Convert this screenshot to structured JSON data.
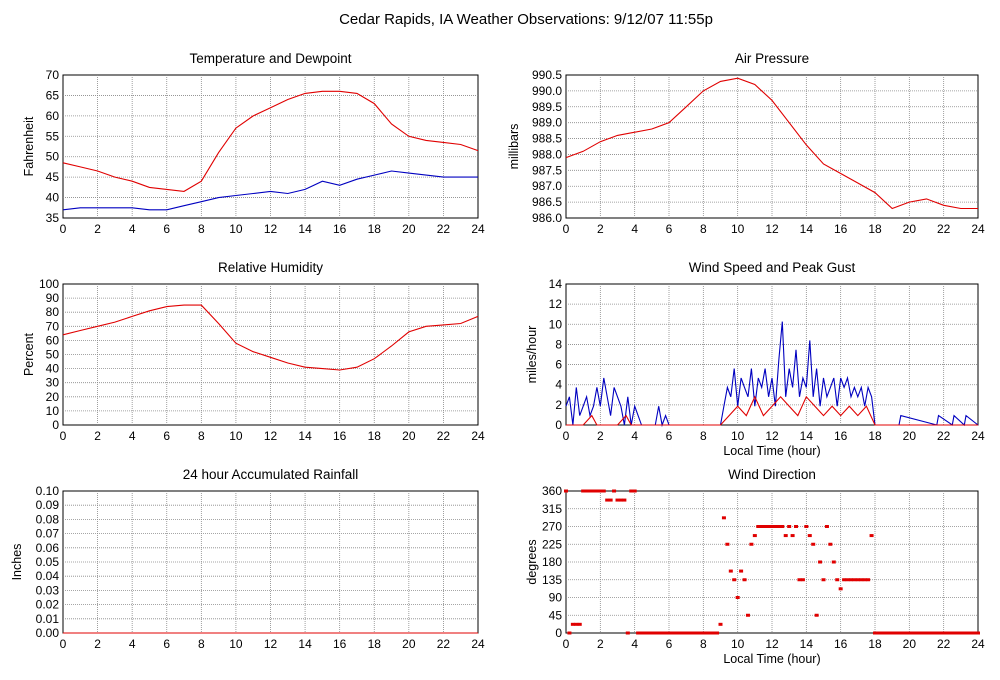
{
  "page": {
    "title": "Cedar Rapids, IA Weather Observations: 9/12/07 11:55p"
  },
  "chart_data": [
    {
      "id": "temp",
      "type": "line",
      "title": "Temperature and Dewpoint",
      "xlabel": "",
      "ylabel": "Fahrenheit",
      "xlim": [
        0,
        24
      ],
      "ylim": [
        35,
        70
      ],
      "grid": true,
      "x_ticks": [
        "0",
        "2",
        "4",
        "6",
        "8",
        "10",
        "12",
        "14",
        "16",
        "18",
        "20",
        "22",
        "24"
      ],
      "y_ticks": [
        "35",
        "40",
        "45",
        "50",
        "55",
        "60",
        "65",
        "70"
      ],
      "x": [
        0,
        1,
        2,
        3,
        4,
        5,
        6,
        7,
        8,
        9,
        10,
        11,
        12,
        13,
        14,
        15,
        16,
        17,
        18,
        19,
        20,
        21,
        22,
        23,
        24
      ],
      "series": [
        {
          "color": "#e00000",
          "values": [
            48.5,
            47.5,
            46.5,
            45,
            44,
            42.5,
            42,
            41.5,
            44,
            51,
            57,
            60,
            62,
            64,
            65.5,
            66,
            66,
            65.5,
            63,
            58,
            55,
            54,
            53.5,
            53,
            51.5
          ]
        },
        {
          "color": "#0000c0",
          "values": [
            37,
            37.5,
            37.5,
            37.5,
            37.5,
            37,
            37,
            38,
            39,
            40,
            40.5,
            41,
            41.5,
            41,
            42,
            44,
            43,
            44.5,
            45.5,
            46.5,
            46,
            45.5,
            45,
            45,
            45
          ]
        }
      ]
    },
    {
      "id": "pressure",
      "type": "line",
      "title": "Air Pressure",
      "xlabel": "",
      "ylabel": "millibars",
      "xlim": [
        0,
        24
      ],
      "ylim": [
        986.0,
        990.5
      ],
      "grid": true,
      "x_ticks": [
        "0",
        "2",
        "4",
        "6",
        "8",
        "10",
        "12",
        "14",
        "16",
        "18",
        "20",
        "22",
        "24"
      ],
      "y_ticks": [
        "986.0",
        "986.5",
        "987.0",
        "987.5",
        "988.0",
        "988.5",
        "989.0",
        "989.5",
        "990.0",
        "990.5"
      ],
      "x": [
        0,
        1,
        2,
        3,
        4,
        5,
        6,
        7,
        8,
        9,
        10,
        11,
        12,
        13,
        14,
        15,
        16,
        17,
        18,
        19,
        20,
        21,
        22,
        23,
        24
      ],
      "series": [
        {
          "color": "#e00000",
          "values": [
            987.9,
            988.1,
            988.4,
            988.6,
            988.7,
            988.8,
            989.0,
            989.5,
            990.0,
            990.3,
            990.4,
            990.2,
            989.7,
            989.0,
            988.3,
            987.7,
            987.4,
            987.1,
            986.8,
            986.3,
            986.5,
            986.6,
            986.4,
            986.3,
            986.3
          ]
        }
      ]
    },
    {
      "id": "humidity",
      "type": "line",
      "title": "Relative Humidity",
      "xlabel": "",
      "ylabel": "Percent",
      "xlim": [
        0,
        24
      ],
      "ylim": [
        0,
        100
      ],
      "grid": true,
      "x_ticks": [
        "0",
        "2",
        "4",
        "6",
        "8",
        "10",
        "12",
        "14",
        "16",
        "18",
        "20",
        "22",
        "24"
      ],
      "y_ticks": [
        "0",
        "10",
        "20",
        "30",
        "40",
        "50",
        "60",
        "70",
        "80",
        "90",
        "100"
      ],
      "x": [
        0,
        1,
        2,
        3,
        4,
        5,
        6,
        7,
        8,
        9,
        10,
        11,
        12,
        13,
        14,
        15,
        16,
        17,
        18,
        19,
        20,
        21,
        22,
        23,
        24
      ],
      "series": [
        {
          "color": "#e00000",
          "values": [
            64,
            67,
            70,
            73,
            77,
            81,
            84,
            85,
            85,
            72,
            58,
            52,
            48,
            44,
            41,
            40,
            39,
            41,
            47,
            56,
            66,
            70,
            71,
            72,
            77
          ]
        }
      ]
    },
    {
      "id": "wind",
      "type": "line",
      "title": "Wind Speed and Peak Gust",
      "xlabel": "Local Time (hour)",
      "ylabel": "miles/hour",
      "xlim": [
        0,
        24
      ],
      "ylim": [
        0,
        15
      ],
      "grid": true,
      "x_ticks": [
        "0",
        "2",
        "4",
        "6",
        "8",
        "10",
        "12",
        "14",
        "16",
        "18",
        "20",
        "22",
        "24"
      ],
      "y_ticks": [
        "0",
        "2",
        "4",
        "6",
        "8",
        "10",
        "12",
        "14"
      ],
      "series": [
        {
          "color": "#0000c0",
          "x": [
            0,
            0.2,
            0.4,
            0.6,
            0.8,
            1,
            1.2,
            1.4,
            1.6,
            1.8,
            2,
            2.2,
            2.4,
            2.6,
            2.8,
            3,
            3.2,
            3.4,
            3.6,
            3.8,
            4,
            4.2,
            4.4,
            4.6,
            4.8,
            5,
            5.2,
            5.4,
            5.6,
            5.8,
            6,
            6.2,
            6.4,
            6.6,
            6.8,
            7,
            7.2,
            7.4,
            7.6,
            7.8,
            8,
            8.2,
            8.4,
            8.6,
            8.8,
            9,
            9.2,
            9.4,
            9.6,
            9.8,
            10,
            10.2,
            10.4,
            10.6,
            10.8,
            11,
            11.2,
            11.4,
            11.6,
            11.8,
            12,
            12.2,
            12.4,
            12.6,
            12.8,
            13,
            13.2,
            13.4,
            13.6,
            13.8,
            14,
            14.2,
            14.4,
            14.6,
            14.8,
            15,
            15.2,
            15.4,
            15.6,
            15.8,
            16,
            16.2,
            16.4,
            16.6,
            16.8,
            17,
            17.2,
            17.4,
            17.6,
            17.8,
            18,
            18.2,
            19.4,
            19.5,
            21.6,
            21.7,
            22.5,
            22.6,
            23.2,
            23.3,
            24
          ],
          "values": [
            2,
            3,
            0,
            4,
            1,
            2,
            3,
            1,
            2,
            4,
            2,
            5,
            3,
            1,
            4,
            3,
            2,
            0,
            3,
            0,
            2,
            1,
            0,
            0,
            0,
            0,
            0,
            2,
            0,
            1,
            0,
            0,
            0,
            0,
            0,
            0,
            0,
            0,
            0,
            0,
            0,
            0,
            0,
            0,
            0,
            0,
            2,
            4,
            3,
            6,
            2,
            5,
            4,
            3,
            6,
            2,
            5,
            4,
            6,
            3,
            5,
            2,
            7,
            11,
            3,
            6,
            4,
            8,
            3,
            5,
            4,
            9,
            3,
            6,
            2,
            5,
            3,
            4,
            5,
            2,
            5,
            4,
            5,
            3,
            4,
            3,
            4,
            2,
            4,
            3,
            0,
            0,
            0,
            1,
            0,
            1,
            0,
            1,
            0,
            1,
            0
          ]
        },
        {
          "color": "#e00000",
          "x": [
            0,
            1,
            1.5,
            1.8,
            2,
            3,
            3.5,
            3.8,
            4,
            8,
            9,
            9.5,
            10,
            10.5,
            11,
            11.5,
            12,
            12.5,
            13,
            13.5,
            14,
            14.5,
            15,
            15.5,
            16,
            16.5,
            17,
            17.5,
            18,
            24
          ],
          "values": [
            0,
            0,
            1,
            0,
            0,
            0,
            1,
            0,
            0,
            0,
            0,
            1,
            2,
            1,
            3,
            1,
            2,
            3,
            2,
            1,
            3,
            2,
            1,
            2,
            1,
            2,
            1,
            2,
            0,
            0
          ]
        }
      ]
    },
    {
      "id": "rain",
      "type": "line",
      "title": "24 hour Accumulated Rainfall",
      "xlabel": "",
      "ylabel": "Inches",
      "xlim": [
        0,
        24
      ],
      "ylim": [
        0,
        0.1
      ],
      "grid": true,
      "x_ticks": [
        "0",
        "2",
        "4",
        "6",
        "8",
        "10",
        "12",
        "14",
        "16",
        "18",
        "20",
        "22",
        "24"
      ],
      "y_ticks": [
        "0.00",
        "0.01",
        "0.02",
        "0.03",
        "0.04",
        "0.05",
        "0.06",
        "0.07",
        "0.08",
        "0.09",
        "0.10"
      ],
      "x": [
        0,
        24
      ],
      "series": [
        {
          "color": "#e00000",
          "values": [
            0,
            0
          ]
        }
      ]
    },
    {
      "id": "direction",
      "type": "scatter",
      "title": "Wind Direction",
      "xlabel": "Local Time (hour)",
      "ylabel": "degrees",
      "xlim": [
        0,
        24
      ],
      "ylim": [
        0,
        360
      ],
      "grid": true,
      "x_ticks": [
        "0",
        "2",
        "4",
        "6",
        "8",
        "10",
        "12",
        "14",
        "16",
        "18",
        "20",
        "22",
        "24"
      ],
      "y_ticks": [
        "0",
        "45",
        "90",
        "135",
        "180",
        "225",
        "270",
        "315",
        "360"
      ],
      "series": [
        {
          "color": "#e00000",
          "x": [
            0,
            0.2,
            0.4,
            0.6,
            0.8,
            1,
            1.2,
            1.4,
            1.6,
            1.8,
            2,
            2.2,
            2.4,
            2.6,
            2.8,
            3,
            3.2,
            3.4,
            3.6,
            3.8,
            4,
            4.2,
            4.4,
            4.6,
            4.8,
            5,
            5.2,
            5.4,
            5.6,
            5.8,
            6,
            6.2,
            6.4,
            6.6,
            6.8,
            7,
            7.2,
            7.4,
            7.6,
            7.8,
            8,
            8.2,
            8.4,
            8.6,
            8.8,
            9,
            9.2,
            9.4,
            9.6,
            9.8,
            10,
            10.2,
            10.4,
            10.6,
            10.8,
            11,
            11.2,
            11.4,
            11.6,
            11.8,
            12,
            12.2,
            12.4,
            12.6,
            12.8,
            13,
            13.2,
            13.4,
            13.6,
            13.8,
            14,
            14.2,
            14.4,
            14.6,
            14.8,
            15,
            15.2,
            15.4,
            15.6,
            15.8,
            16,
            16.2,
            16.4,
            16.6,
            16.8,
            17,
            17.2,
            17.4,
            17.6,
            17.8,
            18,
            18.2,
            18.4,
            18.6,
            18.8,
            19,
            19.2,
            19.4,
            19.6,
            19.8,
            20,
            20.2,
            20.4,
            20.6,
            20.8,
            21,
            21.2,
            21.4,
            21.6,
            21.8,
            22,
            22.2,
            22.4,
            22.6,
            22.8,
            23,
            23.2,
            23.4,
            23.6,
            23.8,
            24
          ],
          "values": [
            360,
            0,
            22,
            22,
            22,
            360,
            360,
            360,
            360,
            360,
            360,
            360,
            337,
            337,
            360,
            337,
            337,
            337,
            0,
            360,
            360,
            0,
            0,
            0,
            0,
            0,
            0,
            0,
            0,
            0,
            0,
            0,
            0,
            0,
            0,
            0,
            0,
            0,
            0,
            0,
            0,
            0,
            0,
            0,
            0,
            22,
            292,
            225,
            157,
            135,
            90,
            157,
            135,
            45,
            225,
            247,
            270,
            270,
            270,
            270,
            270,
            270,
            270,
            270,
            247,
            270,
            247,
            270,
            135,
            135,
            270,
            247,
            225,
            45,
            180,
            135,
            270,
            225,
            180,
            135,
            112,
            135,
            135,
            135,
            135,
            135,
            135,
            135,
            135,
            247,
            0,
            0,
            0,
            0,
            0,
            0,
            0,
            0,
            0,
            0,
            0,
            0,
            0,
            0,
            0,
            0,
            0,
            0,
            0,
            0,
            0,
            0,
            0,
            0,
            0,
            0,
            0,
            0,
            0,
            0,
            0
          ]
        }
      ]
    }
  ]
}
